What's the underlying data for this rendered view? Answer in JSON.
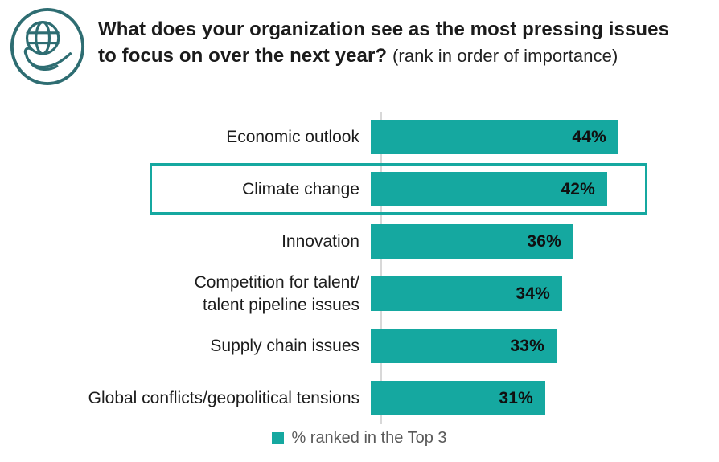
{
  "header": {
    "icon": "globe-in-hand-icon",
    "title_line1": "What does your organization see as the most pressing issues",
    "title_line2": "to focus on over the next year?",
    "title_note": "(rank in order of importance)"
  },
  "chart_data": {
    "type": "bar",
    "orientation": "horizontal",
    "title": "What does your organization see as the most pressing issues to focus on over the next year? (rank in order of importance)",
    "categories": [
      "Economic outlook",
      "Climate change",
      "Innovation",
      "Competition for talent/\ntalent pipeline issues",
      "Supply chain issues",
      "Global conflicts/geopolitical tensions"
    ],
    "values": [
      44,
      42,
      36,
      34,
      33,
      31
    ],
    "value_labels": [
      "44%",
      "42%",
      "36%",
      "34%",
      "33%",
      "31%"
    ],
    "unit": "%",
    "highlighted_category": "Climate change",
    "highlighted_index": 1,
    "legend": "% ranked in the Top 3",
    "legend_position": "bottom-center",
    "xlim": [
      0,
      46
    ],
    "grid": false,
    "value_label_position": "inside-end"
  },
  "colors": {
    "bar": "#15A8A0",
    "highlight_border": "#15A8A0",
    "icon": "#2E6D72",
    "title_text": "#1B1B1B",
    "label_text": "#1C1C1C",
    "legend_text": "#595959",
    "axis_line": "#D8D8D8",
    "background": "#FFFFFF"
  }
}
